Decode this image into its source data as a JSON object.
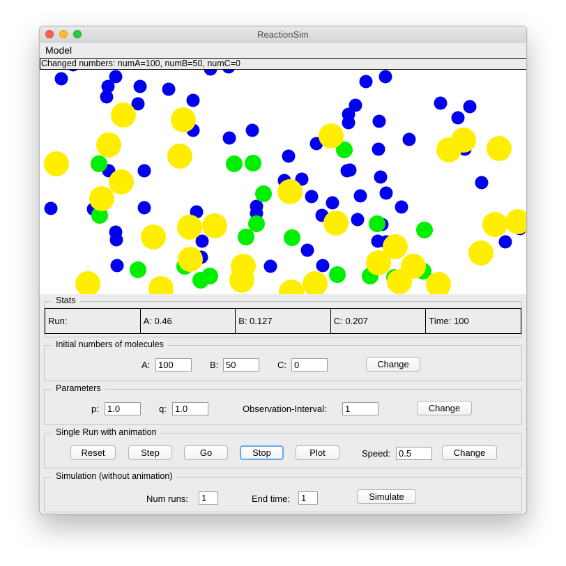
{
  "window": {
    "title": "ReactionSim"
  },
  "menu": {
    "items": [
      "Model"
    ]
  },
  "status": {
    "text": "Changed numbers: numA=100, numB=50, numC=0"
  },
  "colors": {
    "a": "#0000ee",
    "b": "#00ee00",
    "c": "#ffee00"
  },
  "stats": {
    "title": "Stats",
    "run": "Run:",
    "a": "A: 0.46",
    "b": "B: 0.127",
    "c": "C: 0.207",
    "time": "Time: 100"
  },
  "initial": {
    "title": "Initial numbers of molecules",
    "a_label": "A:",
    "a_value": "100",
    "b_label": "B:",
    "b_value": "50",
    "c_label": "C:",
    "c_value": "0",
    "change_label": "Change"
  },
  "params": {
    "title": "Parameters",
    "p_label": "p:",
    "p_value": "1.0",
    "q_label": "q:",
    "q_value": "1.0",
    "obs_label": "Observation-Interval:",
    "obs_value": "1",
    "change_label": "Change"
  },
  "single": {
    "title": "Single Run with animation",
    "reset_label": "Reset",
    "step_label": "Step",
    "go_label": "Go",
    "stop_label": "Stop",
    "plot_label": "Plot",
    "speed_label": "Speed:",
    "speed_value": "0.5",
    "change_label": "Change"
  },
  "sim": {
    "title": "Simulation (without animation)",
    "runs_label": "Num runs:",
    "runs_value": "1",
    "end_label": "End time:",
    "end_value": "1",
    "simulate_label": "Simulate"
  }
}
